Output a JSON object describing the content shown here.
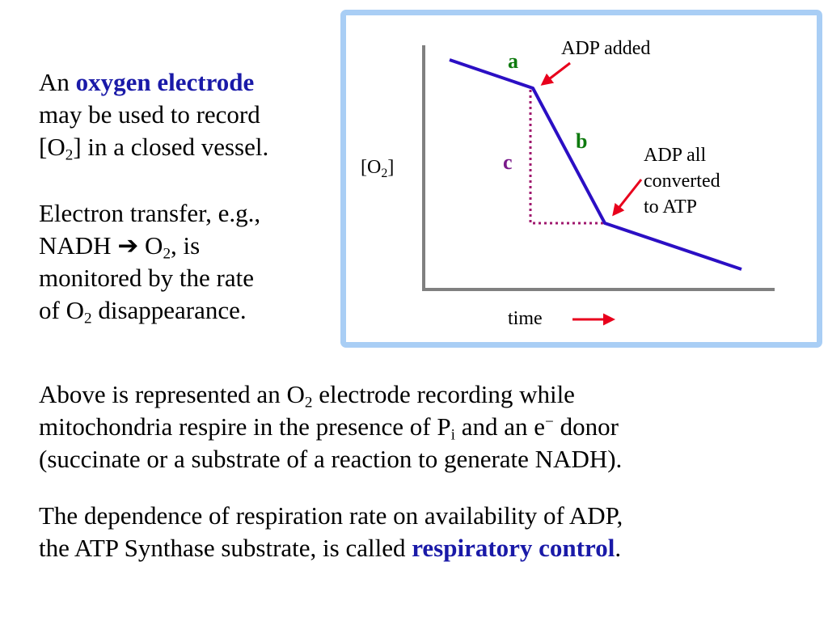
{
  "intro": {
    "prefix": "An ",
    "term": "oxygen electrode",
    "line2": "may be used to record",
    "line3_open": "[O",
    "line3_sub": "2",
    "line3_rest": "] in a closed vessel."
  },
  "transfer": {
    "line1": "Electron transfer, e.g.,",
    "nadh": "NADH",
    "arrow": "➔",
    "o": "O",
    "o_sub": "2",
    "tail": ", is",
    "line3": "monitored by the rate",
    "of": "of O",
    "of_sub": "2",
    "end": " disappearance."
  },
  "recording": {
    "a": "Above is represented an O",
    "a_sub": "2",
    "b": " electrode recording while",
    "c": "mitochondria respire in the presence of P",
    "c_sub": "i",
    "d": " and an e",
    "d_sup": "−",
    "e": " donor",
    "f": "(succinate or a substrate of a reaction to generate NADH)."
  },
  "control": {
    "line1": "The dependence of respiration rate on availability of ADP,",
    "line2": "the ATP Synthase substrate, is called ",
    "term": "respiratory control",
    "end": "."
  },
  "diagram": {
    "y_label": "[O",
    "y_label_sub": "2",
    "y_label_close": "]",
    "x_label": "time",
    "seg_a": "a",
    "seg_b": "b",
    "seg_c": "c",
    "ann_adp_added": "ADP added",
    "ann_converted_1": "ADP all",
    "ann_converted_2": "converted",
    "ann_converted_3": "to ATP",
    "colors": {
      "trace": "#2b0fc4",
      "dotted": "#a0186e",
      "arrows": "#e8001c",
      "seg_ab": "#0e7a0e",
      "seg_c": "#7a1a8a",
      "axes": "#808080",
      "border": "#a9cef5"
    }
  }
}
